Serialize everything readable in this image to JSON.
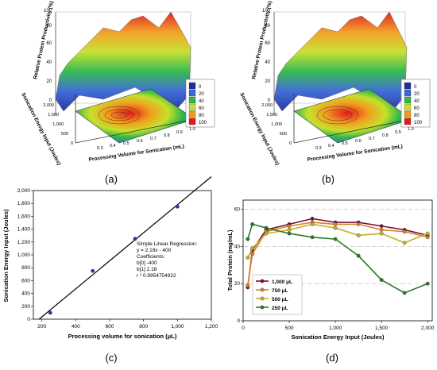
{
  "panels": {
    "a": "(a)",
    "b": "(b)",
    "c": "(c)",
    "d": "(d)"
  },
  "surface3d": {
    "zlabel": "Relative Protein Productivity (%)",
    "ylabel": "Sonication Energy Input (Joules)",
    "xlabel": "Processing Volume for Sonication (mL)",
    "z_ticks": [
      "0",
      "20",
      "40",
      "60",
      "80",
      "100"
    ],
    "y_ticks": [
      "0",
      "500",
      "1,000",
      "1,500",
      "2,000"
    ],
    "x_ticks": [
      "0.3",
      "0.4",
      "0.5",
      "0.6",
      "0.7",
      "0.8",
      "0.9",
      "1.0"
    ],
    "legend": [
      "0",
      "20",
      "40",
      "60",
      "80",
      "100"
    ],
    "legend_colors": [
      "#1f2e9c",
      "#3a66d8",
      "#2fb84a",
      "#c8e02b",
      "#f39c1f",
      "#e01b1b"
    ]
  },
  "chart_data": [
    {
      "type": "scatter",
      "xlabel": "Processing volume for sonication (μL)",
      "ylabel": "Sonication Energy Input (Joules)",
      "xlim": [
        150,
        1200
      ],
      "ylim": [
        0,
        2000
      ],
      "x_ticks": [
        "200",
        "400",
        "600",
        "800",
        "1,000",
        "1,200"
      ],
      "y_ticks": [
        "0",
        "200",
        "400",
        "600",
        "800",
        "1,000",
        "1,200",
        "1,400",
        "1,600",
        "1,800",
        "2,000"
      ],
      "points": [
        {
          "x": 250,
          "y": 100
        },
        {
          "x": 500,
          "y": 750
        },
        {
          "x": 750,
          "y": 1250
        },
        {
          "x": 1000,
          "y": 1750
        }
      ],
      "fit": {
        "slope": 2.18,
        "intercept": -400
      },
      "annotation": [
        "Simple Linear Regression:",
        "y = 2.18x - 400",
        "Coefficients:",
        "b[0]  -400",
        "b[1]  2.18",
        "r ²   0.9954754922"
      ],
      "point_color": "#1f3a9c"
    },
    {
      "type": "line",
      "xlabel": "Sonication Energy Input (Joules)",
      "ylabel": "Total Protein (mg/mL)",
      "xlim": [
        0,
        2050
      ],
      "ylim": [
        0,
        65
      ],
      "x_ticks": [
        "0",
        "500",
        "1,000",
        "1,500",
        "2,000"
      ],
      "y_ticks": [
        "0",
        "20",
        "40",
        "60"
      ],
      "x": [
        50,
        100,
        250,
        500,
        750,
        1000,
        1250,
        1500,
        1750,
        2000
      ],
      "series": [
        {
          "name": "1,000 μL",
          "color": "#7a1030",
          "values": [
            18,
            38,
            49,
            52,
            55,
            53,
            53,
            51,
            49,
            46
          ]
        },
        {
          "name": "750 μL",
          "color": "#d9802a",
          "values": [
            19,
            36,
            48,
            51,
            53,
            52,
            52,
            49,
            48,
            45
          ]
        },
        {
          "name": "500 μL",
          "color": "#c8b02a",
          "values": [
            34,
            39,
            47,
            49,
            52,
            50,
            46,
            47,
            42,
            47
          ]
        },
        {
          "name": "250 μL",
          "color": "#2a7a2a",
          "values": [
            44,
            52,
            50,
            47,
            45,
            44,
            35,
            22,
            15,
            20
          ]
        }
      ],
      "legend_position": "bottom-left"
    }
  ]
}
